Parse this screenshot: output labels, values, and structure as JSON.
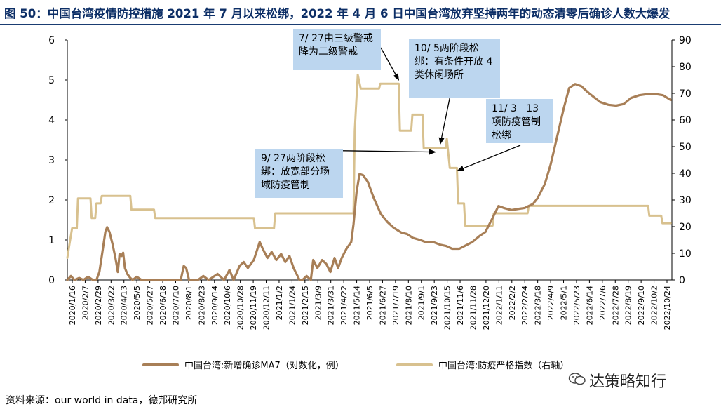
{
  "title": "图 50：中国台湾疫情防控措施 2021 年 7 月以来松绑，2022 年 4 月 6 日中国台湾放弃坚持两年的动态清零后确诊人数大爆发",
  "source": "资料来源：our world in data，德邦研究所",
  "watermark": "达策略知行",
  "watermark_icon": "wechat-icon",
  "chart_data": {
    "type": "line",
    "x_tick_labels": [
      "2020/1/16",
      "2020/2/7",
      "2020/2/29",
      "2020/3/22",
      "2020/4/13",
      "2020/5/5",
      "2020/5/27",
      "2020/6/18",
      "2020/7/10",
      "2020/8/1",
      "2020/8/23",
      "2020/9/14",
      "2020/10/6",
      "2020/10/28",
      "2020/11/19",
      "2020/12/11",
      "2021/1/2",
      "2021/1/24",
      "2021/2/15",
      "2021/3/9",
      "2021/3/31",
      "2021/4/22",
      "2021/5/14",
      "2021/6/5",
      "2021/6/27",
      "2021/7/19",
      "2021/8/10",
      "2021/9/1",
      "2021/9/23",
      "2021/10/15",
      "2021/11/6",
      "2021/11/28",
      "2021/12/20",
      "2022/1/11",
      "2022/2/2",
      "2022/2/24",
      "2022/3/18",
      "2022/4/9",
      "2022/5/1",
      "2022/5/23",
      "2022/6/14",
      "2022/7/6",
      "2022/7/28",
      "2022/8/19",
      "2022/9/10",
      "2022/10/2",
      "2022/10/24"
    ],
    "y_left": {
      "min": 0,
      "max": 6,
      "ticks": [
        0,
        1,
        2,
        3,
        4,
        5,
        6
      ]
    },
    "y_right": {
      "min": 0,
      "max": 90,
      "ticks": [
        0,
        10,
        20,
        30,
        40,
        50,
        60,
        70,
        80,
        90
      ]
    },
    "series": [
      {
        "name": "中国台湾:新增确诊MA7（对数化，例）",
        "axis": "left",
        "color": "#a87f57",
        "points": [
          [
            "2020/1/16",
            0.0
          ],
          [
            "2020/1/22",
            0.1
          ],
          [
            "2020/1/28",
            0.0
          ],
          [
            "2020/2/5",
            0.05
          ],
          [
            "2020/2/12",
            0.0
          ],
          [
            "2020/2/20",
            0.08
          ],
          [
            "2020/2/28",
            0.0
          ],
          [
            "2020/3/5",
            0.0
          ],
          [
            "2020/3/10",
            0.2
          ],
          [
            "2020/3/15",
            0.7
          ],
          [
            "2020/3/20",
            1.2
          ],
          [
            "2020/3/23",
            1.32
          ],
          [
            "2020/3/27",
            1.2
          ],
          [
            "2020/4/1",
            0.9
          ],
          [
            "2020/4/6",
            0.55
          ],
          [
            "2020/4/10",
            0.2
          ],
          [
            "2020/4/13",
            0.65
          ],
          [
            "2020/4/16",
            0.6
          ],
          [
            "2020/4/19",
            0.68
          ],
          [
            "2020/4/22",
            0.3
          ],
          [
            "2020/4/26",
            0.15
          ],
          [
            "2020/5/1",
            0.05
          ],
          [
            "2020/5/5",
            0.0
          ],
          [
            "2020/5/12",
            0.08
          ],
          [
            "2020/5/20",
            0.0
          ],
          [
            "2020/6/1",
            0.0
          ],
          [
            "2020/6/18",
            0.0
          ],
          [
            "2020/7/10",
            0.0
          ],
          [
            "2020/7/25",
            0.0
          ],
          [
            "2020/7/30",
            0.35
          ],
          [
            "2020/8/3",
            0.3
          ],
          [
            "2020/8/8",
            0.0
          ],
          [
            "2020/8/23",
            0.0
          ],
          [
            "2020/9/1",
            0.1
          ],
          [
            "2020/9/10",
            0.0
          ],
          [
            "2020/9/25",
            0.15
          ],
          [
            "2020/10/6",
            0.0
          ],
          [
            "2020/10/15",
            0.25
          ],
          [
            "2020/10/22",
            0.0
          ],
          [
            "2020/11/1",
            0.35
          ],
          [
            "2020/11/8",
            0.45
          ],
          [
            "2020/11/15",
            0.3
          ],
          [
            "2020/11/25",
            0.5
          ],
          [
            "2020/12/5",
            0.95
          ],
          [
            "2020/12/10",
            0.78
          ],
          [
            "2020/12/18",
            0.55
          ],
          [
            "2020/12/25",
            0.7
          ],
          [
            "2021/1/2",
            0.5
          ],
          [
            "2021/1/10",
            0.65
          ],
          [
            "2021/1/17",
            0.45
          ],
          [
            "2021/1/24",
            0.6
          ],
          [
            "2021/1/31",
            0.3
          ],
          [
            "2021/2/5",
            0.15
          ],
          [
            "2021/2/10",
            0.0
          ],
          [
            "2021/2/15",
            0.0
          ],
          [
            "2021/2/22",
            0.1
          ],
          [
            "2021/3/1",
            0.0
          ],
          [
            "2021/3/5",
            0.5
          ],
          [
            "2021/3/12",
            0.3
          ],
          [
            "2021/3/20",
            0.5
          ],
          [
            "2021/3/27",
            0.4
          ],
          [
            "2021/4/3",
            0.2
          ],
          [
            "2021/4/10",
            0.55
          ],
          [
            "2021/4/16",
            0.3
          ],
          [
            "2021/4/22",
            0.55
          ],
          [
            "2021/4/30",
            0.78
          ],
          [
            "2021/5/8",
            0.95
          ],
          [
            "2021/5/12",
            1.4
          ],
          [
            "2021/5/17",
            2.2
          ],
          [
            "2021/5/22",
            2.65
          ],
          [
            "2021/5/28",
            2.62
          ],
          [
            "2021/6/5",
            2.45
          ],
          [
            "2021/6/15",
            2.05
          ],
          [
            "2021/6/27",
            1.65
          ],
          [
            "2021/7/8",
            1.45
          ],
          [
            "2021/7/19",
            1.3
          ],
          [
            "2021/8/1",
            1.18
          ],
          [
            "2021/8/10",
            1.15
          ],
          [
            "2021/8/20",
            1.05
          ],
          [
            "2021/9/1",
            1.0
          ],
          [
            "2021/9/10",
            0.95
          ],
          [
            "2021/9/23",
            0.95
          ],
          [
            "2021/10/5",
            0.88
          ],
          [
            "2021/10/15",
            0.85
          ],
          [
            "2021/10/25",
            0.78
          ],
          [
            "2021/11/6",
            0.78
          ],
          [
            "2021/11/15",
            0.85
          ],
          [
            "2021/11/28",
            0.95
          ],
          [
            "2021/12/10",
            1.1
          ],
          [
            "2021/12/20",
            1.2
          ],
          [
            "2022/1/1",
            1.55
          ],
          [
            "2022/1/11",
            1.85
          ],
          [
            "2022/1/20",
            1.8
          ],
          [
            "2022/2/2",
            1.75
          ],
          [
            "2022/2/15",
            1.78
          ],
          [
            "2022/2/24",
            1.8
          ],
          [
            "2022/3/10",
            1.9
          ],
          [
            "2022/3/18",
            2.05
          ],
          [
            "2022/3/30",
            2.4
          ],
          [
            "2022/4/9",
            2.9
          ],
          [
            "2022/4/20",
            3.6
          ],
          [
            "2022/5/1",
            4.3
          ],
          [
            "2022/5/10",
            4.8
          ],
          [
            "2022/5/20",
            4.9
          ],
          [
            "2022/5/30",
            4.85
          ],
          [
            "2022/6/14",
            4.65
          ],
          [
            "2022/7/1",
            4.45
          ],
          [
            "2022/7/15",
            4.38
          ],
          [
            "2022/7/28",
            4.36
          ],
          [
            "2022/8/10",
            4.4
          ],
          [
            "2022/8/22",
            4.55
          ],
          [
            "2022/9/5",
            4.62
          ],
          [
            "2022/9/20",
            4.65
          ],
          [
            "2022/10/2",
            4.65
          ],
          [
            "2022/10/15",
            4.62
          ],
          [
            "2022/10/28",
            4.5
          ]
        ]
      },
      {
        "name": "中国台湾:防疫严格指数（右轴）",
        "axis": "right",
        "color": "#d8c18f",
        "points": [
          [
            "2020/1/16",
            8.3
          ],
          [
            "2020/1/20",
            14
          ],
          [
            "2020/1/24",
            19.4
          ],
          [
            "2020/2/1",
            19.4
          ],
          [
            "2020/2/3",
            30.6
          ],
          [
            "2020/2/24",
            30.6
          ],
          [
            "2020/2/26",
            23.2
          ],
          [
            "2020/3/3",
            23.2
          ],
          [
            "2020/3/5",
            28.7
          ],
          [
            "2020/3/12",
            28.7
          ],
          [
            "2020/3/14",
            31.5
          ],
          [
            "2020/5/1",
            31.5
          ],
          [
            "2020/5/3",
            26.4
          ],
          [
            "2020/6/10",
            26.4
          ],
          [
            "2020/6/12",
            23.2
          ],
          [
            "2020/11/25",
            23.2
          ],
          [
            "2020/11/27",
            19.4
          ],
          [
            "2020/12/29",
            19.4
          ],
          [
            "2020/12/31",
            25
          ],
          [
            "2021/5/12",
            25
          ],
          [
            "2021/5/14",
            56
          ],
          [
            "2021/5/19",
            77
          ],
          [
            "2021/5/24",
            71.8
          ],
          [
            "2021/6/24",
            71.8
          ],
          [
            "2021/6/26",
            73.6
          ],
          [
            "2021/7/27",
            73.6
          ],
          [
            "2021/7/29",
            56
          ],
          [
            "2021/8/17",
            56
          ],
          [
            "2021/8/19",
            62
          ],
          [
            "2021/9/5",
            62
          ],
          [
            "2021/9/7",
            49.5
          ],
          [
            "2021/10/14",
            49.5
          ],
          [
            "2021/10/16",
            53
          ],
          [
            "2021/10/21",
            42
          ],
          [
            "2021/11/2",
            42
          ],
          [
            "2021/11/4",
            28.7
          ],
          [
            "2021/11/14",
            28.7
          ],
          [
            "2021/11/16",
            20.4
          ],
          [
            "2022/1/1",
            20.4
          ],
          [
            "2022/1/3",
            25
          ],
          [
            "2022/3/1",
            25
          ],
          [
            "2022/3/3",
            27.8
          ],
          [
            "2022/9/20",
            27.8
          ],
          [
            "2022/9/22",
            24.1
          ],
          [
            "2022/10/12",
            24.1
          ],
          [
            "2022/10/14",
            21.3
          ],
          [
            "2022/10/28",
            21.3
          ]
        ]
      }
    ],
    "annotations": [
      {
        "text": "7/ 27由三级警戒降为二级警戒",
        "point": [
          "2021/7/27",
          75
        ]
      },
      {
        "text": "10/ 5两阶段松绑：有条件开放 4 类休闲场所",
        "point": [
          "2021/10/5",
          51
        ]
      },
      {
        "text": "11/ 3   13项防疫管制松绑",
        "point": [
          "2021/11/3",
          41
        ]
      },
      {
        "text": "9/ 27两阶段松绑：放宽部分场域防疫管制",
        "point": [
          "2021/9/27",
          48
        ]
      }
    ],
    "legend": {
      "position": "bottom",
      "items": [
        "中国台湾:新增确诊MA7（对数化，例）",
        "中国台湾:防疫严格指数（右轴）"
      ]
    }
  }
}
